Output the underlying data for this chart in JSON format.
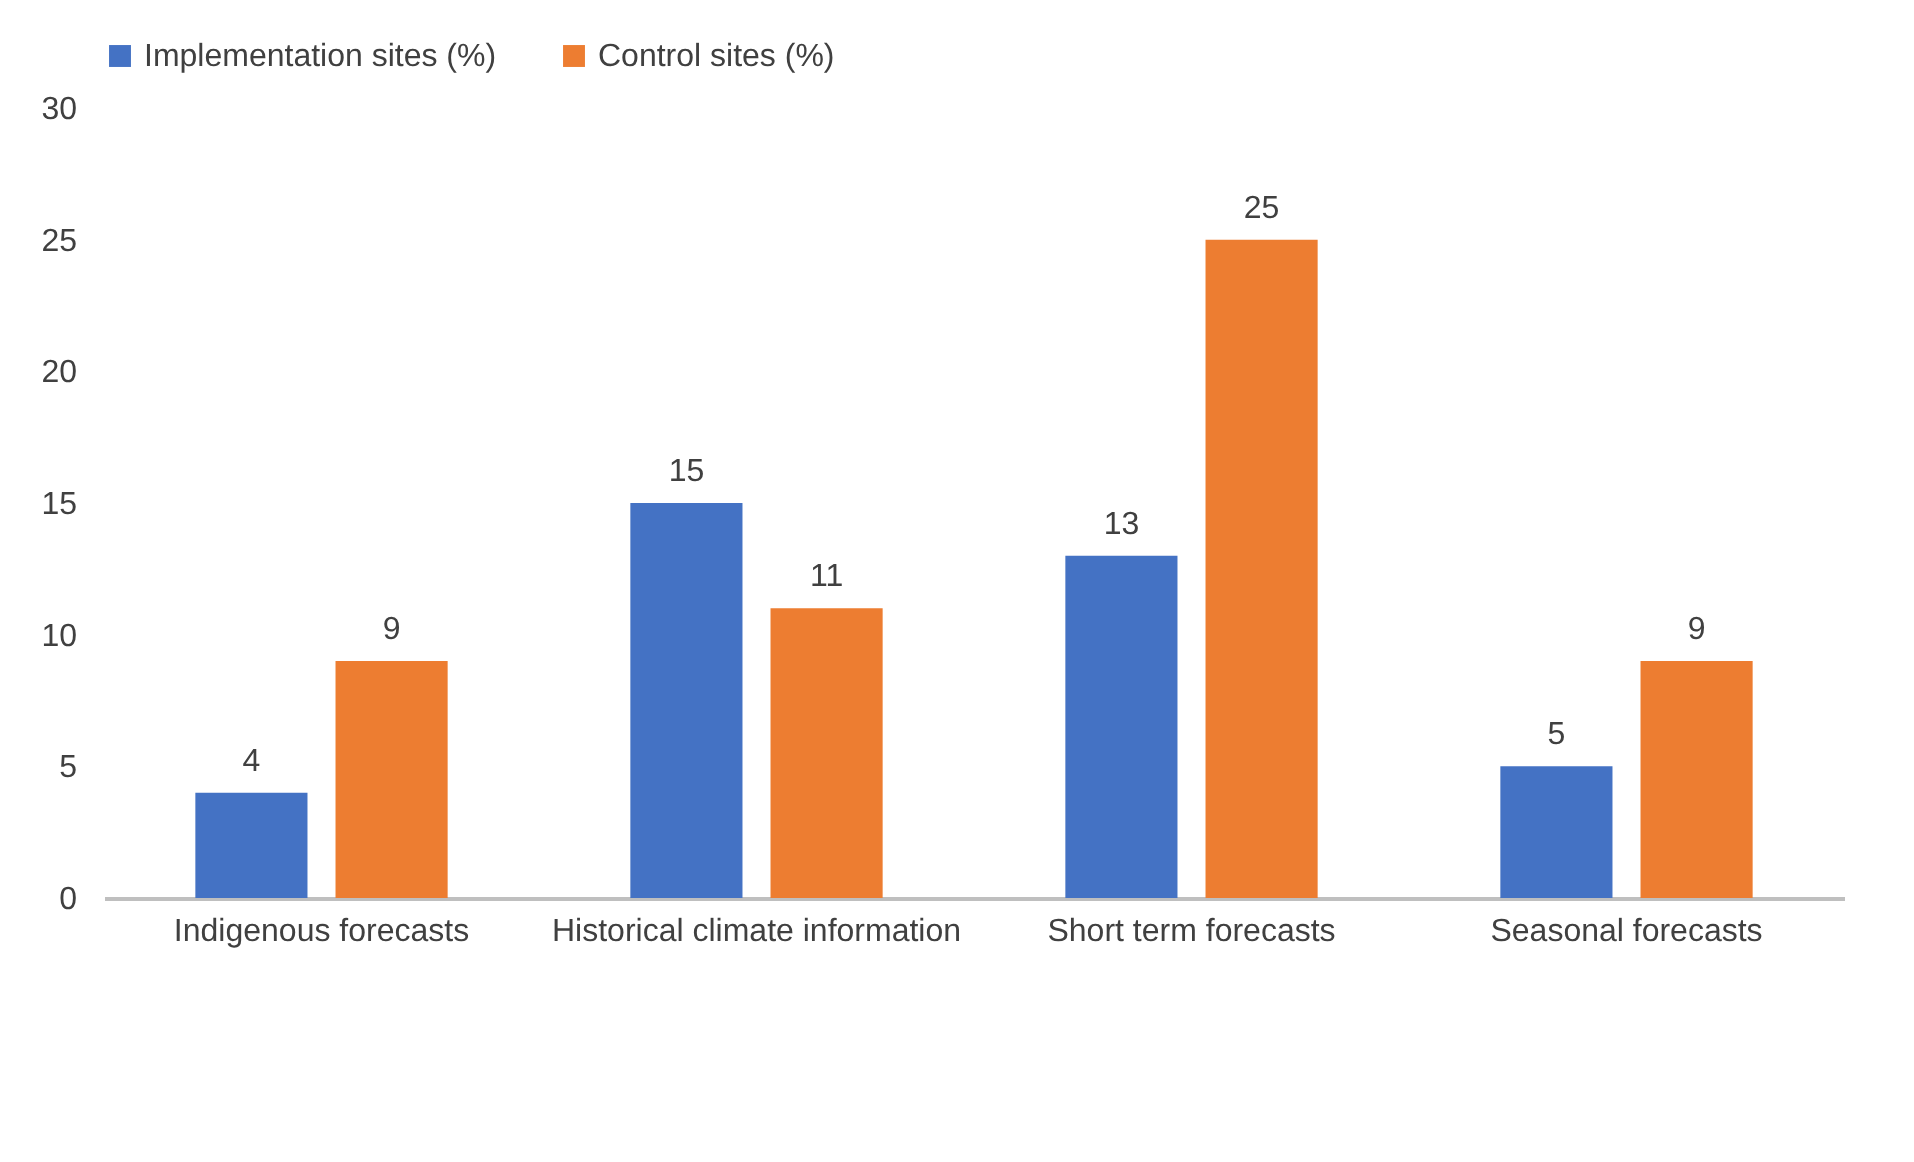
{
  "chart_data": {
    "type": "bar",
    "categories": [
      "Indigenous forecasts",
      "Historical climate information",
      "Short term forecasts",
      "Seasonal forecasts"
    ],
    "series": [
      {
        "name": "Implementation sites (%)",
        "color": "#4472c4",
        "values": [
          4,
          15,
          13,
          5
        ]
      },
      {
        "name": "Control sites (%)",
        "color": "#ed7d31",
        "values": [
          9,
          11,
          25,
          9
        ]
      }
    ],
    "ylim": [
      0,
      30
    ],
    "yticks": [
      0,
      5,
      10,
      15,
      20,
      25,
      30
    ],
    "grid": false,
    "legend": "top",
    "data_labels": true
  }
}
